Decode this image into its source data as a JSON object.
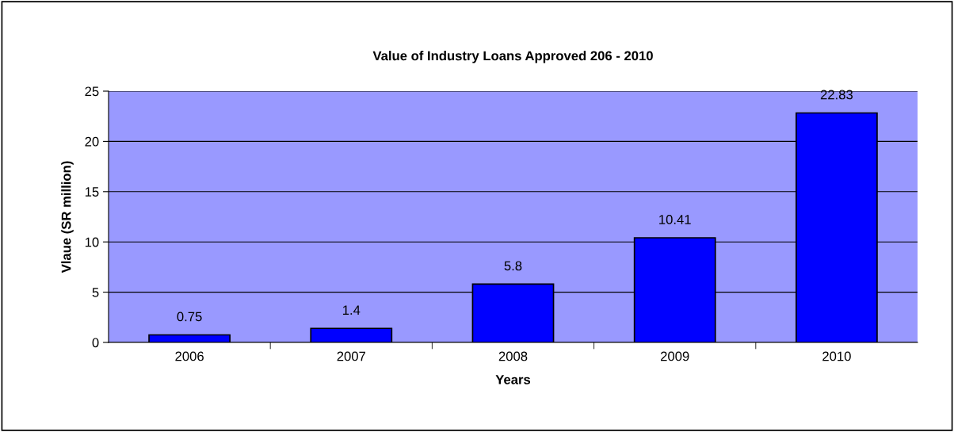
{
  "chart_data": {
    "type": "bar",
    "title": "Value of Industry Loans Approved 206 - 2010",
    "xlabel": "Years",
    "ylabel": "Vlaue (SR million)",
    "categories": [
      "2006",
      "2007",
      "2008",
      "2009",
      "2010"
    ],
    "values": [
      0.75,
      1.4,
      5.8,
      10.41,
      22.83
    ],
    "color": "#0000ff",
    "ylim": [
      0,
      25
    ],
    "yticks": [
      0,
      5,
      10,
      15,
      20,
      25
    ],
    "grid": "y",
    "legend": false,
    "data_labels": true
  }
}
